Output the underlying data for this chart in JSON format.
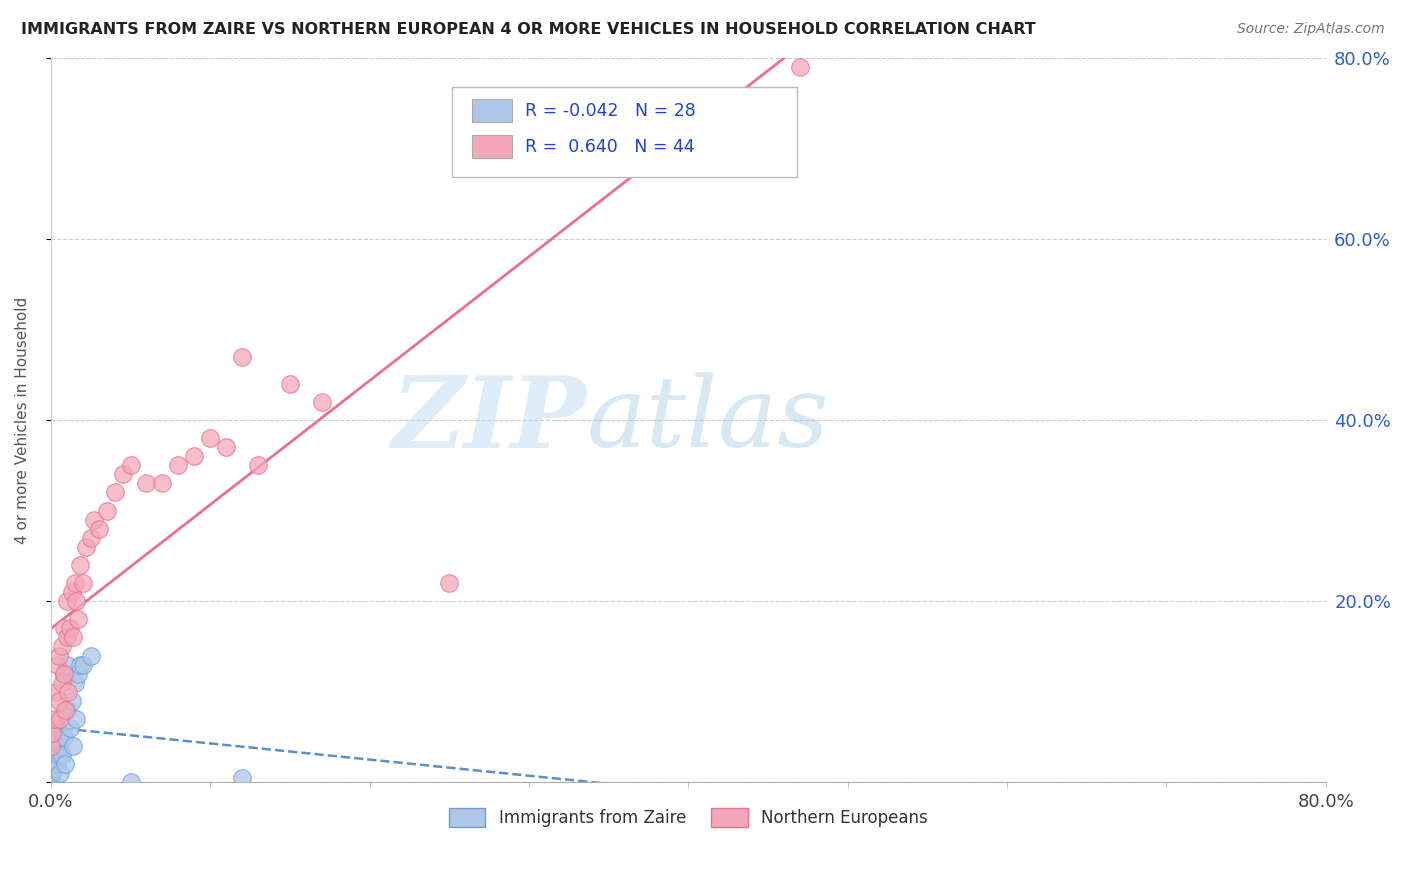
{
  "title": "IMMIGRANTS FROM ZAIRE VS NORTHERN EUROPEAN 4 OR MORE VEHICLES IN HOUSEHOLD CORRELATION CHART",
  "source": "Source: ZipAtlas.com",
  "ylabel": "4 or more Vehicles in Household",
  "watermark_zip": "ZIP",
  "watermark_atlas": "atlas",
  "xlim": [
    0.0,
    0.8
  ],
  "ylim": [
    0.0,
    0.8
  ],
  "series": [
    {
      "name": "Immigrants from Zaire",
      "color": "#aec6e8",
      "edge_color": "#6b9fd4",
      "R": -0.042,
      "N": 28,
      "line_style": "--",
      "line_color": "#5b8fc9",
      "x": [
        0.0,
        0.001,
        0.002,
        0.003,
        0.003,
        0.004,
        0.004,
        0.005,
        0.005,
        0.006,
        0.006,
        0.007,
        0.008,
        0.008,
        0.009,
        0.01,
        0.01,
        0.012,
        0.013,
        0.014,
        0.015,
        0.016,
        0.017,
        0.018,
        0.02,
        0.025,
        0.05,
        0.12
      ],
      "y": [
        0.005,
        0.01,
        0.015,
        0.025,
        0.04,
        0.02,
        0.06,
        0.03,
        0.05,
        0.01,
        0.04,
        0.03,
        0.05,
        0.12,
        0.02,
        0.08,
        0.13,
        0.06,
        0.09,
        0.04,
        0.11,
        0.07,
        0.12,
        0.13,
        0.13,
        0.14,
        0.0,
        0.005
      ]
    },
    {
      "name": "Northern Europeans",
      "color": "#f2a8b8",
      "edge_color": "#e87090",
      "R": 0.64,
      "N": 44,
      "line_style": "-",
      "line_color": "#e87090",
      "x": [
        0.0,
        0.001,
        0.002,
        0.003,
        0.004,
        0.005,
        0.005,
        0.006,
        0.007,
        0.007,
        0.008,
        0.008,
        0.009,
        0.01,
        0.01,
        0.011,
        0.012,
        0.013,
        0.014,
        0.015,
        0.016,
        0.017,
        0.018,
        0.02,
        0.022,
        0.025,
        0.027,
        0.03,
        0.035,
        0.04,
        0.045,
        0.05,
        0.06,
        0.07,
        0.08,
        0.09,
        0.1,
        0.11,
        0.12,
        0.13,
        0.15,
        0.17,
        0.25,
        0.47
      ],
      "y": [
        0.04,
        0.055,
        0.07,
        0.1,
        0.13,
        0.14,
        0.09,
        0.07,
        0.11,
        0.15,
        0.12,
        0.17,
        0.08,
        0.16,
        0.2,
        0.1,
        0.17,
        0.21,
        0.16,
        0.22,
        0.2,
        0.18,
        0.24,
        0.22,
        0.26,
        0.27,
        0.29,
        0.28,
        0.3,
        0.32,
        0.34,
        0.35,
        0.33,
        0.33,
        0.35,
        0.36,
        0.38,
        0.37,
        0.47,
        0.35,
        0.44,
        0.42,
        0.22,
        0.79
      ]
    }
  ]
}
